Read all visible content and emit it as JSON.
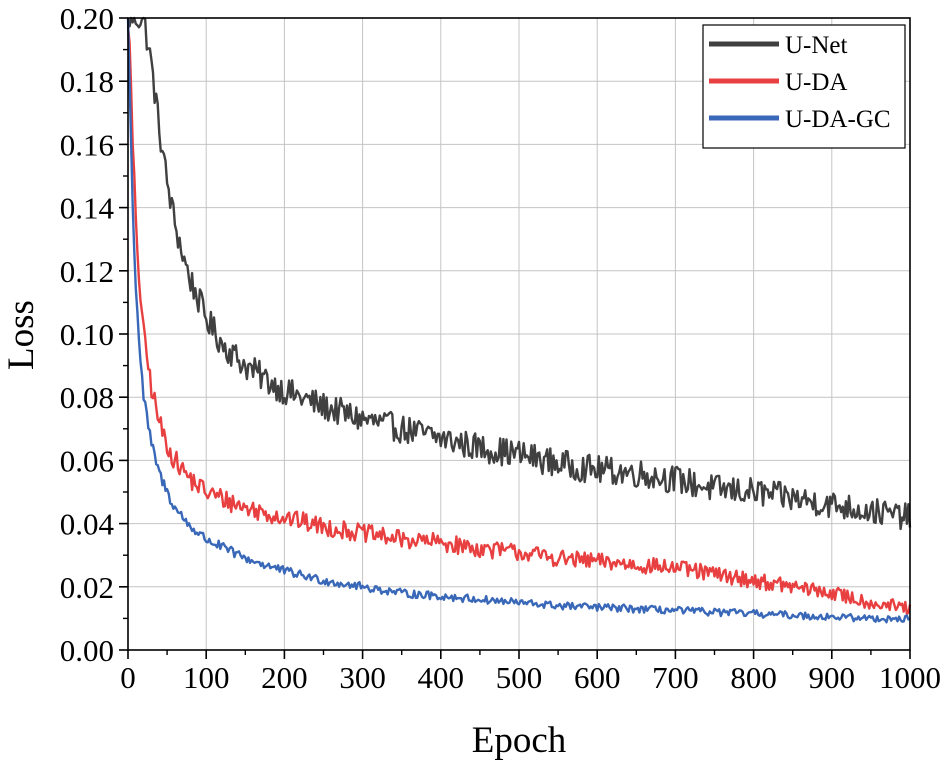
{
  "chart_data": {
    "type": "line",
    "xlabel": "Epoch",
    "ylabel": "Loss",
    "xlim": [
      0,
      1000
    ],
    "ylim": [
      0,
      0.2
    ],
    "x_ticks": [
      0,
      100,
      200,
      300,
      400,
      500,
      600,
      700,
      800,
      900,
      1000
    ],
    "y_ticks": [
      0.0,
      0.02,
      0.04,
      0.06,
      0.08,
      0.1,
      0.12,
      0.14,
      0.16,
      0.18,
      0.2
    ],
    "x_tick_labels": [
      "0",
      "100",
      "200",
      "300",
      "400",
      "500",
      "600",
      "700",
      "800",
      "900",
      "1000"
    ],
    "y_tick_labels": [
      "0.00",
      "0.02",
      "0.04",
      "0.06",
      "0.08",
      "0.10",
      "0.12",
      "0.14",
      "0.16",
      "0.18",
      "0.20"
    ],
    "grid": true,
    "legend_position": "top-right",
    "series": [
      {
        "name": "U-Net",
        "color": "#404040",
        "x": [
          0,
          5,
          10,
          20,
          30,
          40,
          50,
          60,
          70,
          80,
          100,
          120,
          150,
          180,
          200,
          250,
          300,
          350,
          400,
          450,
          500,
          550,
          600,
          650,
          700,
          750,
          800,
          850,
          900,
          950,
          1000
        ],
        "y": [
          0.2,
          0.2,
          0.2,
          0.2,
          0.185,
          0.165,
          0.148,
          0.135,
          0.125,
          0.117,
          0.105,
          0.097,
          0.09,
          0.085,
          0.082,
          0.077,
          0.073,
          0.07,
          0.067,
          0.064,
          0.062,
          0.059,
          0.057,
          0.056,
          0.054,
          0.051,
          0.05,
          0.048,
          0.046,
          0.044,
          0.042
        ],
        "noise": 0.0045
      },
      {
        "name": "U-DA",
        "color": "#e84040",
        "x": [
          0,
          3,
          6,
          10,
          15,
          20,
          30,
          40,
          50,
          60,
          80,
          100,
          150,
          200,
          250,
          300,
          350,
          400,
          450,
          500,
          550,
          600,
          650,
          700,
          750,
          800,
          850,
          900,
          950,
          1000
        ],
        "y": [
          0.2,
          0.185,
          0.16,
          0.135,
          0.115,
          0.1,
          0.083,
          0.072,
          0.065,
          0.06,
          0.054,
          0.05,
          0.045,
          0.042,
          0.039,
          0.037,
          0.035,
          0.034,
          0.032,
          0.031,
          0.029,
          0.028,
          0.027,
          0.026,
          0.024,
          0.022,
          0.02,
          0.018,
          0.015,
          0.013
        ],
        "noise": 0.0033
      },
      {
        "name": "U-DA-GC",
        "color": "#3a68b8",
        "x": [
          0,
          3,
          6,
          10,
          15,
          20,
          30,
          40,
          50,
          60,
          80,
          100,
          150,
          200,
          250,
          300,
          350,
          400,
          450,
          500,
          550,
          600,
          650,
          700,
          750,
          800,
          850,
          900,
          950,
          1000
        ],
        "y": [
          0.2,
          0.17,
          0.14,
          0.115,
          0.095,
          0.08,
          0.065,
          0.056,
          0.05,
          0.045,
          0.039,
          0.035,
          0.029,
          0.025,
          0.022,
          0.02,
          0.018,
          0.017,
          0.016,
          0.015,
          0.014,
          0.0135,
          0.013,
          0.0125,
          0.012,
          0.0115,
          0.011,
          0.0105,
          0.01,
          0.0098
        ],
        "noise": 0.0018
      }
    ]
  }
}
